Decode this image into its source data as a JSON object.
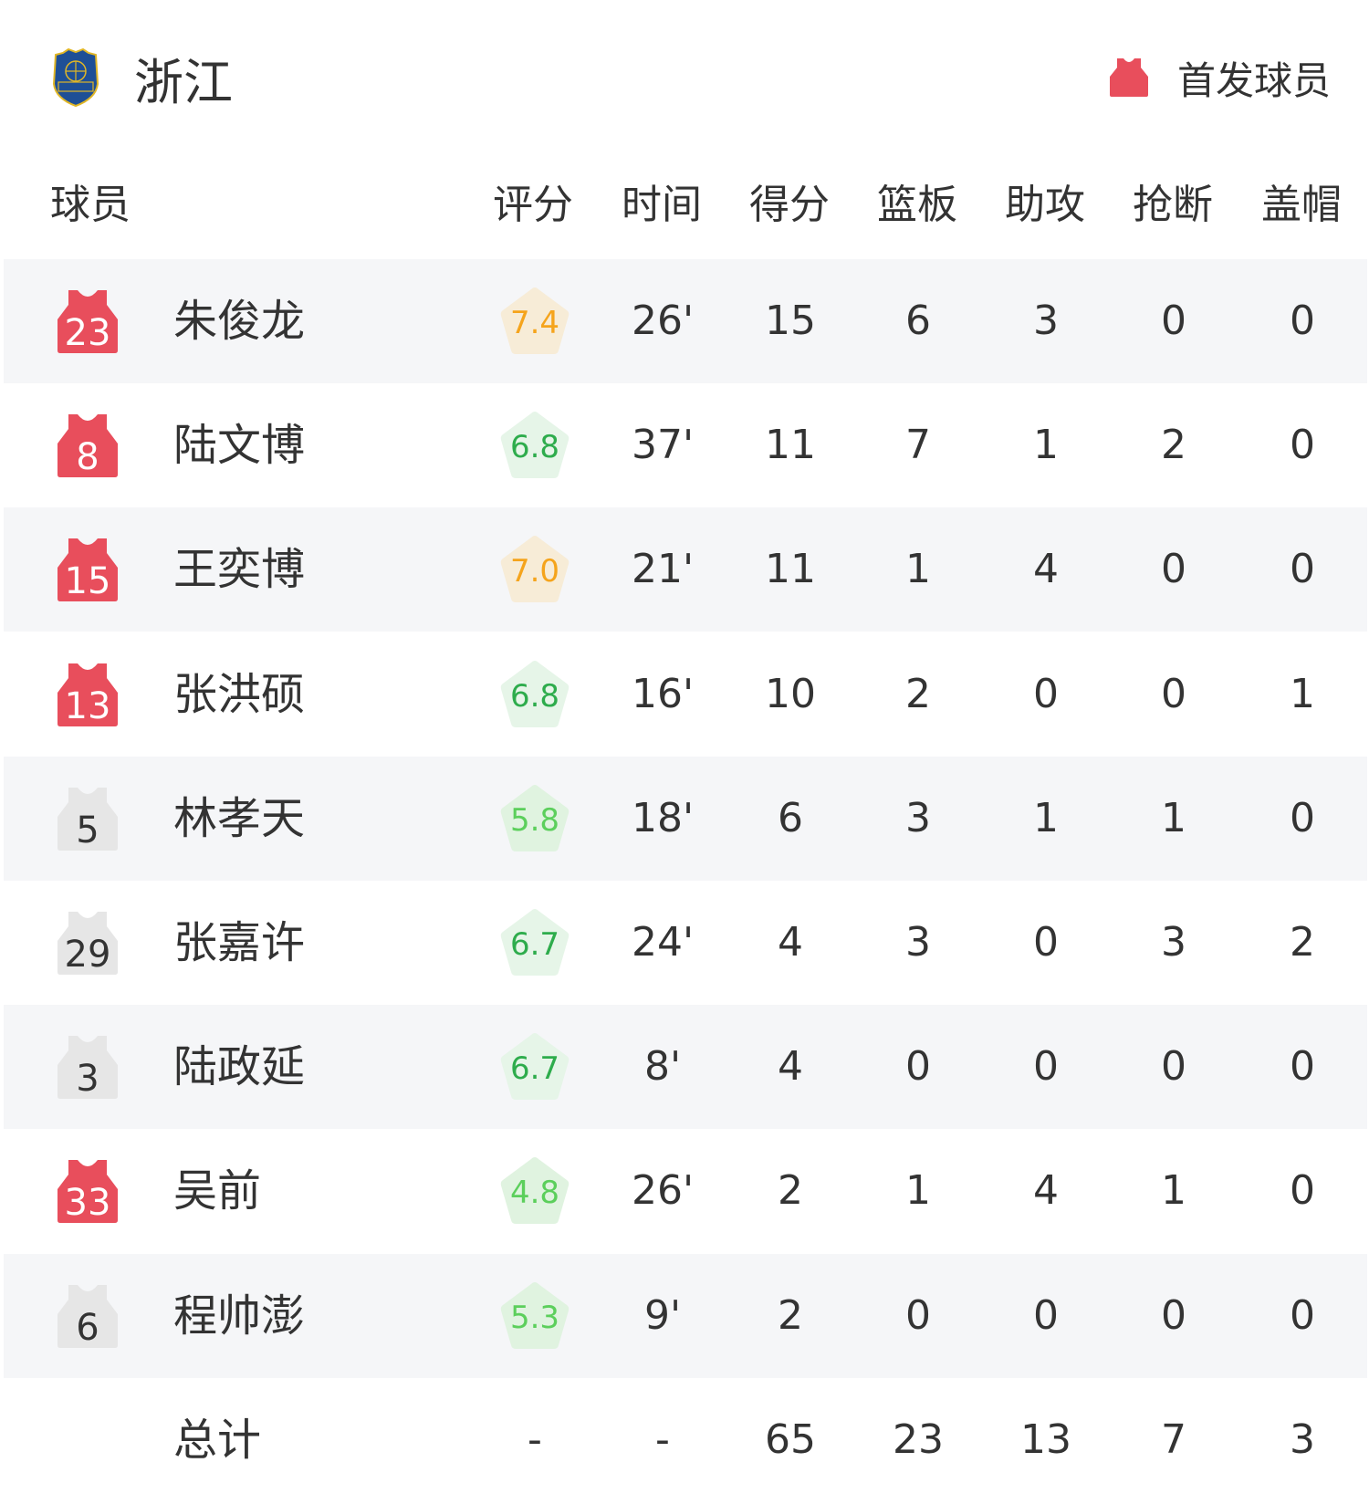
{
  "team": {
    "name": "浙江",
    "logo_icon": "zhejiang-basketball-association-crest",
    "logo_text": "浙江篮协"
  },
  "legend": {
    "label": "首发球员",
    "icon": "red-jersey-icon",
    "starter_color": "#e84e5c",
    "bench_color": "#e6e6e6"
  },
  "headers": {
    "player": "球员",
    "rating": "评分",
    "time": "时间",
    "points": "得分",
    "rebounds": "篮板",
    "assists": "助攻",
    "steals": "抢断",
    "blocks": "盖帽"
  },
  "players": [
    {
      "number": "23",
      "name": "朱俊龙",
      "starter": true,
      "rating": "7.4",
      "rating_color": "#f5a41c",
      "rating_bg": "#f7ecd7",
      "time": "26'",
      "points": "15",
      "rebounds": "6",
      "assists": "3",
      "steals": "0",
      "blocks": "0"
    },
    {
      "number": "8",
      "name": "陆文博",
      "starter": true,
      "rating": "6.8",
      "rating_color": "#2eac4c",
      "rating_bg": "#e6f5e8",
      "time": "37'",
      "points": "11",
      "rebounds": "7",
      "assists": "1",
      "steals": "2",
      "blocks": "0"
    },
    {
      "number": "15",
      "name": "王奕博",
      "starter": true,
      "rating": "7.0",
      "rating_color": "#f5a41c",
      "rating_bg": "#f7ecd7",
      "time": "21'",
      "points": "11",
      "rebounds": "1",
      "assists": "4",
      "steals": "0",
      "blocks": "0"
    },
    {
      "number": "13",
      "name": "张洪硕",
      "starter": true,
      "rating": "6.8",
      "rating_color": "#2eac4c",
      "rating_bg": "#e6f5e8",
      "time": "16'",
      "points": "10",
      "rebounds": "2",
      "assists": "0",
      "steals": "0",
      "blocks": "1"
    },
    {
      "number": "5",
      "name": "林孝天",
      "starter": false,
      "rating": "5.8",
      "rating_color": "#5ccf5c",
      "rating_bg": "#e0f3e0",
      "time": "18'",
      "points": "6",
      "rebounds": "3",
      "assists": "1",
      "steals": "1",
      "blocks": "0"
    },
    {
      "number": "29",
      "name": "张嘉许",
      "starter": false,
      "rating": "6.7",
      "rating_color": "#2eac4c",
      "rating_bg": "#e6f5e8",
      "time": "24'",
      "points": "4",
      "rebounds": "3",
      "assists": "0",
      "steals": "3",
      "blocks": "2"
    },
    {
      "number": "3",
      "name": "陆政延",
      "starter": false,
      "rating": "6.7",
      "rating_color": "#2eac4c",
      "rating_bg": "#e6f5e8",
      "time": "8'",
      "points": "4",
      "rebounds": "0",
      "assists": "0",
      "steals": "0",
      "blocks": "0"
    },
    {
      "number": "33",
      "name": "吴前",
      "starter": true,
      "rating": "4.8",
      "rating_color": "#5ccf5c",
      "rating_bg": "#e0f3e0",
      "time": "26'",
      "points": "2",
      "rebounds": "1",
      "assists": "4",
      "steals": "1",
      "blocks": "0"
    },
    {
      "number": "6",
      "name": "程帅澎",
      "starter": false,
      "rating": "5.3",
      "rating_color": "#5ccf5c",
      "rating_bg": "#e0f3e0",
      "time": "9'",
      "points": "2",
      "rebounds": "0",
      "assists": "0",
      "steals": "0",
      "blocks": "0"
    }
  ],
  "totals": {
    "label": "总计",
    "rating": "-",
    "time": "-",
    "points": "65",
    "rebounds": "23",
    "assists": "13",
    "steals": "7",
    "blocks": "3"
  }
}
